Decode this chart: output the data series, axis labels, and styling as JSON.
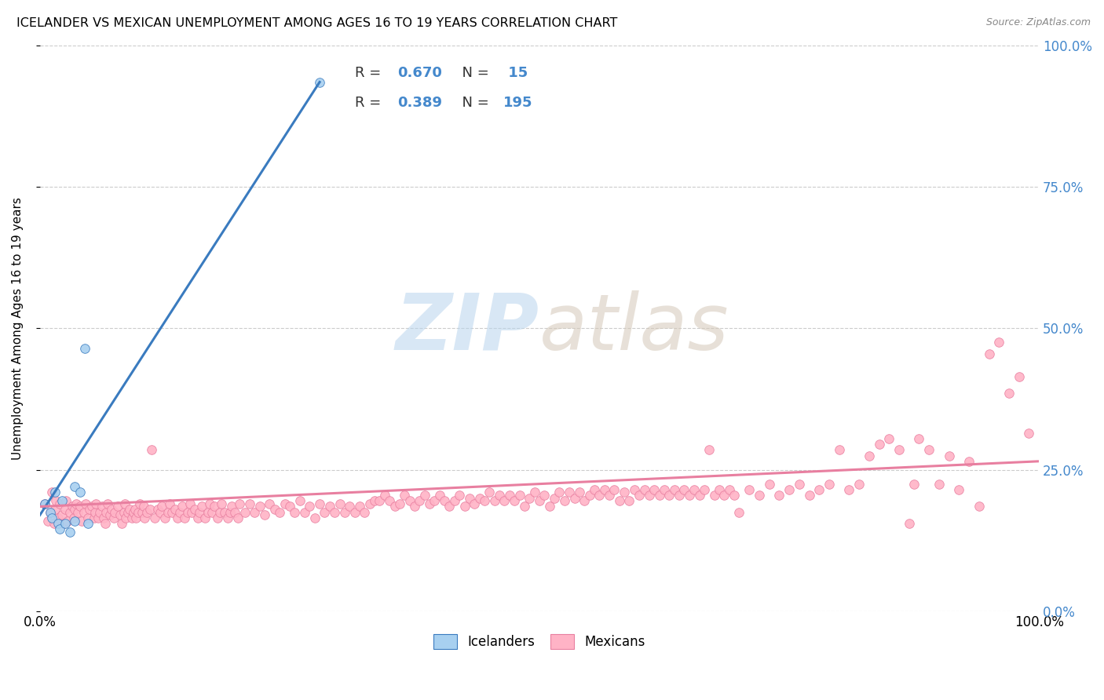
{
  "title": "ICELANDER VS MEXICAN UNEMPLOYMENT AMONG AGES 16 TO 19 YEARS CORRELATION CHART",
  "source": "Source: ZipAtlas.com",
  "ylabel": "Unemployment Among Ages 16 to 19 years",
  "watermark_zip": "ZIP",
  "watermark_atlas": "atlas",
  "blue_color": "#a8d0f0",
  "pink_color": "#ffb3c6",
  "blue_line_color": "#3a7bbf",
  "pink_line_color": "#e87fa0",
  "blue_scatter": [
    [
      0.005,
      0.19
    ],
    [
      0.01,
      0.175
    ],
    [
      0.012,
      0.165
    ],
    [
      0.015,
      0.21
    ],
    [
      0.018,
      0.155
    ],
    [
      0.02,
      0.145
    ],
    [
      0.022,
      0.195
    ],
    [
      0.025,
      0.155
    ],
    [
      0.03,
      0.14
    ],
    [
      0.035,
      0.22
    ],
    [
      0.035,
      0.16
    ],
    [
      0.04,
      0.21
    ],
    [
      0.045,
      0.465
    ],
    [
      0.048,
      0.155
    ],
    [
      0.28,
      0.935
    ]
  ],
  "pink_scatter": [
    [
      0.005,
      0.19
    ],
    [
      0.008,
      0.16
    ],
    [
      0.01,
      0.175
    ],
    [
      0.012,
      0.21
    ],
    [
      0.014,
      0.155
    ],
    [
      0.015,
      0.18
    ],
    [
      0.016,
      0.195
    ],
    [
      0.018,
      0.165
    ],
    [
      0.02,
      0.19
    ],
    [
      0.022,
      0.17
    ],
    [
      0.024,
      0.155
    ],
    [
      0.025,
      0.18
    ],
    [
      0.026,
      0.195
    ],
    [
      0.028,
      0.16
    ],
    [
      0.03,
      0.175
    ],
    [
      0.032,
      0.185
    ],
    [
      0.034,
      0.165
    ],
    [
      0.035,
      0.18
    ],
    [
      0.036,
      0.19
    ],
    [
      0.038,
      0.175
    ],
    [
      0.04,
      0.185
    ],
    [
      0.042,
      0.16
    ],
    [
      0.044,
      0.175
    ],
    [
      0.046,
      0.19
    ],
    [
      0.048,
      0.165
    ],
    [
      0.05,
      0.18
    ],
    [
      0.052,
      0.185
    ],
    [
      0.054,
      0.165
    ],
    [
      0.055,
      0.175
    ],
    [
      0.056,
      0.19
    ],
    [
      0.058,
      0.165
    ],
    [
      0.06,
      0.175
    ],
    [
      0.062,
      0.185
    ],
    [
      0.064,
      0.165
    ],
    [
      0.065,
      0.155
    ],
    [
      0.066,
      0.175
    ],
    [
      0.068,
      0.19
    ],
    [
      0.07,
      0.17
    ],
    [
      0.072,
      0.18
    ],
    [
      0.074,
      0.165
    ],
    [
      0.075,
      0.175
    ],
    [
      0.078,
      0.185
    ],
    [
      0.08,
      0.17
    ],
    [
      0.082,
      0.155
    ],
    [
      0.084,
      0.175
    ],
    [
      0.085,
      0.19
    ],
    [
      0.086,
      0.165
    ],
    [
      0.088,
      0.175
    ],
    [
      0.09,
      0.18
    ],
    [
      0.092,
      0.165
    ],
    [
      0.094,
      0.175
    ],
    [
      0.095,
      0.18
    ],
    [
      0.096,
      0.165
    ],
    [
      0.098,
      0.175
    ],
    [
      0.1,
      0.19
    ],
    [
      0.102,
      0.175
    ],
    [
      0.104,
      0.185
    ],
    [
      0.105,
      0.165
    ],
    [
      0.107,
      0.175
    ],
    [
      0.11,
      0.18
    ],
    [
      0.112,
      0.285
    ],
    [
      0.115,
      0.165
    ],
    [
      0.118,
      0.18
    ],
    [
      0.12,
      0.175
    ],
    [
      0.122,
      0.185
    ],
    [
      0.125,
      0.165
    ],
    [
      0.128,
      0.175
    ],
    [
      0.13,
      0.19
    ],
    [
      0.132,
      0.175
    ],
    [
      0.135,
      0.18
    ],
    [
      0.138,
      0.165
    ],
    [
      0.14,
      0.175
    ],
    [
      0.142,
      0.185
    ],
    [
      0.145,
      0.165
    ],
    [
      0.148,
      0.175
    ],
    [
      0.15,
      0.19
    ],
    [
      0.152,
      0.175
    ],
    [
      0.155,
      0.18
    ],
    [
      0.158,
      0.165
    ],
    [
      0.16,
      0.175
    ],
    [
      0.162,
      0.185
    ],
    [
      0.165,
      0.165
    ],
    [
      0.168,
      0.175
    ],
    [
      0.17,
      0.19
    ],
    [
      0.172,
      0.175
    ],
    [
      0.175,
      0.185
    ],
    [
      0.178,
      0.165
    ],
    [
      0.18,
      0.175
    ],
    [
      0.182,
      0.19
    ],
    [
      0.185,
      0.175
    ],
    [
      0.188,
      0.165
    ],
    [
      0.19,
      0.175
    ],
    [
      0.192,
      0.185
    ],
    [
      0.195,
      0.175
    ],
    [
      0.198,
      0.165
    ],
    [
      0.2,
      0.19
    ],
    [
      0.205,
      0.175
    ],
    [
      0.21,
      0.19
    ],
    [
      0.215,
      0.175
    ],
    [
      0.22,
      0.185
    ],
    [
      0.225,
      0.17
    ],
    [
      0.23,
      0.19
    ],
    [
      0.235,
      0.18
    ],
    [
      0.24,
      0.175
    ],
    [
      0.245,
      0.19
    ],
    [
      0.25,
      0.185
    ],
    [
      0.255,
      0.175
    ],
    [
      0.26,
      0.195
    ],
    [
      0.265,
      0.175
    ],
    [
      0.27,
      0.185
    ],
    [
      0.275,
      0.165
    ],
    [
      0.28,
      0.19
    ],
    [
      0.285,
      0.175
    ],
    [
      0.29,
      0.185
    ],
    [
      0.295,
      0.175
    ],
    [
      0.3,
      0.19
    ],
    [
      0.305,
      0.175
    ],
    [
      0.31,
      0.185
    ],
    [
      0.315,
      0.175
    ],
    [
      0.32,
      0.185
    ],
    [
      0.325,
      0.175
    ],
    [
      0.33,
      0.19
    ],
    [
      0.335,
      0.195
    ],
    [
      0.34,
      0.195
    ],
    [
      0.345,
      0.205
    ],
    [
      0.35,
      0.195
    ],
    [
      0.355,
      0.185
    ],
    [
      0.36,
      0.19
    ],
    [
      0.365,
      0.205
    ],
    [
      0.37,
      0.195
    ],
    [
      0.375,
      0.185
    ],
    [
      0.38,
      0.195
    ],
    [
      0.385,
      0.205
    ],
    [
      0.39,
      0.19
    ],
    [
      0.395,
      0.195
    ],
    [
      0.4,
      0.205
    ],
    [
      0.405,
      0.195
    ],
    [
      0.41,
      0.185
    ],
    [
      0.415,
      0.195
    ],
    [
      0.42,
      0.205
    ],
    [
      0.425,
      0.185
    ],
    [
      0.43,
      0.2
    ],
    [
      0.435,
      0.19
    ],
    [
      0.44,
      0.2
    ],
    [
      0.445,
      0.195
    ],
    [
      0.45,
      0.21
    ],
    [
      0.455,
      0.195
    ],
    [
      0.46,
      0.205
    ],
    [
      0.465,
      0.195
    ],
    [
      0.47,
      0.205
    ],
    [
      0.475,
      0.195
    ],
    [
      0.48,
      0.205
    ],
    [
      0.485,
      0.185
    ],
    [
      0.49,
      0.2
    ],
    [
      0.495,
      0.21
    ],
    [
      0.5,
      0.195
    ],
    [
      0.505,
      0.205
    ],
    [
      0.51,
      0.185
    ],
    [
      0.515,
      0.2
    ],
    [
      0.52,
      0.21
    ],
    [
      0.525,
      0.195
    ],
    [
      0.53,
      0.21
    ],
    [
      0.535,
      0.2
    ],
    [
      0.54,
      0.21
    ],
    [
      0.545,
      0.195
    ],
    [
      0.55,
      0.205
    ],
    [
      0.555,
      0.215
    ],
    [
      0.56,
      0.205
    ],
    [
      0.565,
      0.215
    ],
    [
      0.57,
      0.205
    ],
    [
      0.575,
      0.215
    ],
    [
      0.58,
      0.195
    ],
    [
      0.585,
      0.21
    ],
    [
      0.59,
      0.195
    ],
    [
      0.595,
      0.215
    ],
    [
      0.6,
      0.205
    ],
    [
      0.605,
      0.215
    ],
    [
      0.61,
      0.205
    ],
    [
      0.615,
      0.215
    ],
    [
      0.62,
      0.205
    ],
    [
      0.625,
      0.215
    ],
    [
      0.63,
      0.205
    ],
    [
      0.635,
      0.215
    ],
    [
      0.64,
      0.205
    ],
    [
      0.645,
      0.215
    ],
    [
      0.65,
      0.205
    ],
    [
      0.655,
      0.215
    ],
    [
      0.66,
      0.205
    ],
    [
      0.665,
      0.215
    ],
    [
      0.67,
      0.285
    ],
    [
      0.675,
      0.205
    ],
    [
      0.68,
      0.215
    ],
    [
      0.685,
      0.205
    ],
    [
      0.69,
      0.215
    ],
    [
      0.695,
      0.205
    ],
    [
      0.7,
      0.175
    ],
    [
      0.71,
      0.215
    ],
    [
      0.72,
      0.205
    ],
    [
      0.73,
      0.225
    ],
    [
      0.74,
      0.205
    ],
    [
      0.75,
      0.215
    ],
    [
      0.76,
      0.225
    ],
    [
      0.77,
      0.205
    ],
    [
      0.78,
      0.215
    ],
    [
      0.79,
      0.225
    ],
    [
      0.8,
      0.285
    ],
    [
      0.81,
      0.215
    ],
    [
      0.82,
      0.225
    ],
    [
      0.83,
      0.275
    ],
    [
      0.84,
      0.295
    ],
    [
      0.85,
      0.305
    ],
    [
      0.86,
      0.285
    ],
    [
      0.87,
      0.155
    ],
    [
      0.875,
      0.225
    ],
    [
      0.88,
      0.305
    ],
    [
      0.89,
      0.285
    ],
    [
      0.9,
      0.225
    ],
    [
      0.91,
      0.275
    ],
    [
      0.92,
      0.215
    ],
    [
      0.93,
      0.265
    ],
    [
      0.94,
      0.185
    ],
    [
      0.95,
      0.455
    ],
    [
      0.96,
      0.475
    ],
    [
      0.97,
      0.385
    ],
    [
      0.98,
      0.415
    ],
    [
      0.99,
      0.315
    ]
  ],
  "blue_trendline": [
    [
      0.0,
      0.17
    ],
    [
      0.28,
      0.935
    ]
  ],
  "pink_trendline": [
    [
      0.0,
      0.185
    ],
    [
      1.0,
      0.265
    ]
  ],
  "xlim": [
    0.0,
    1.0
  ],
  "ylim": [
    0.0,
    1.0
  ],
  "yticks": [
    0.0,
    0.25,
    0.5,
    0.75,
    1.0
  ],
  "ytick_labels": [
    "0.0%",
    "25.0%",
    "50.0%",
    "75.0%",
    "100.0%"
  ],
  "xticks": [
    0.0,
    1.0
  ],
  "xtick_labels": [
    "0.0%",
    "100.0%"
  ],
  "right_tick_color": "#4488cc",
  "figsize": [
    14.06,
    8.92
  ],
  "dpi": 100
}
